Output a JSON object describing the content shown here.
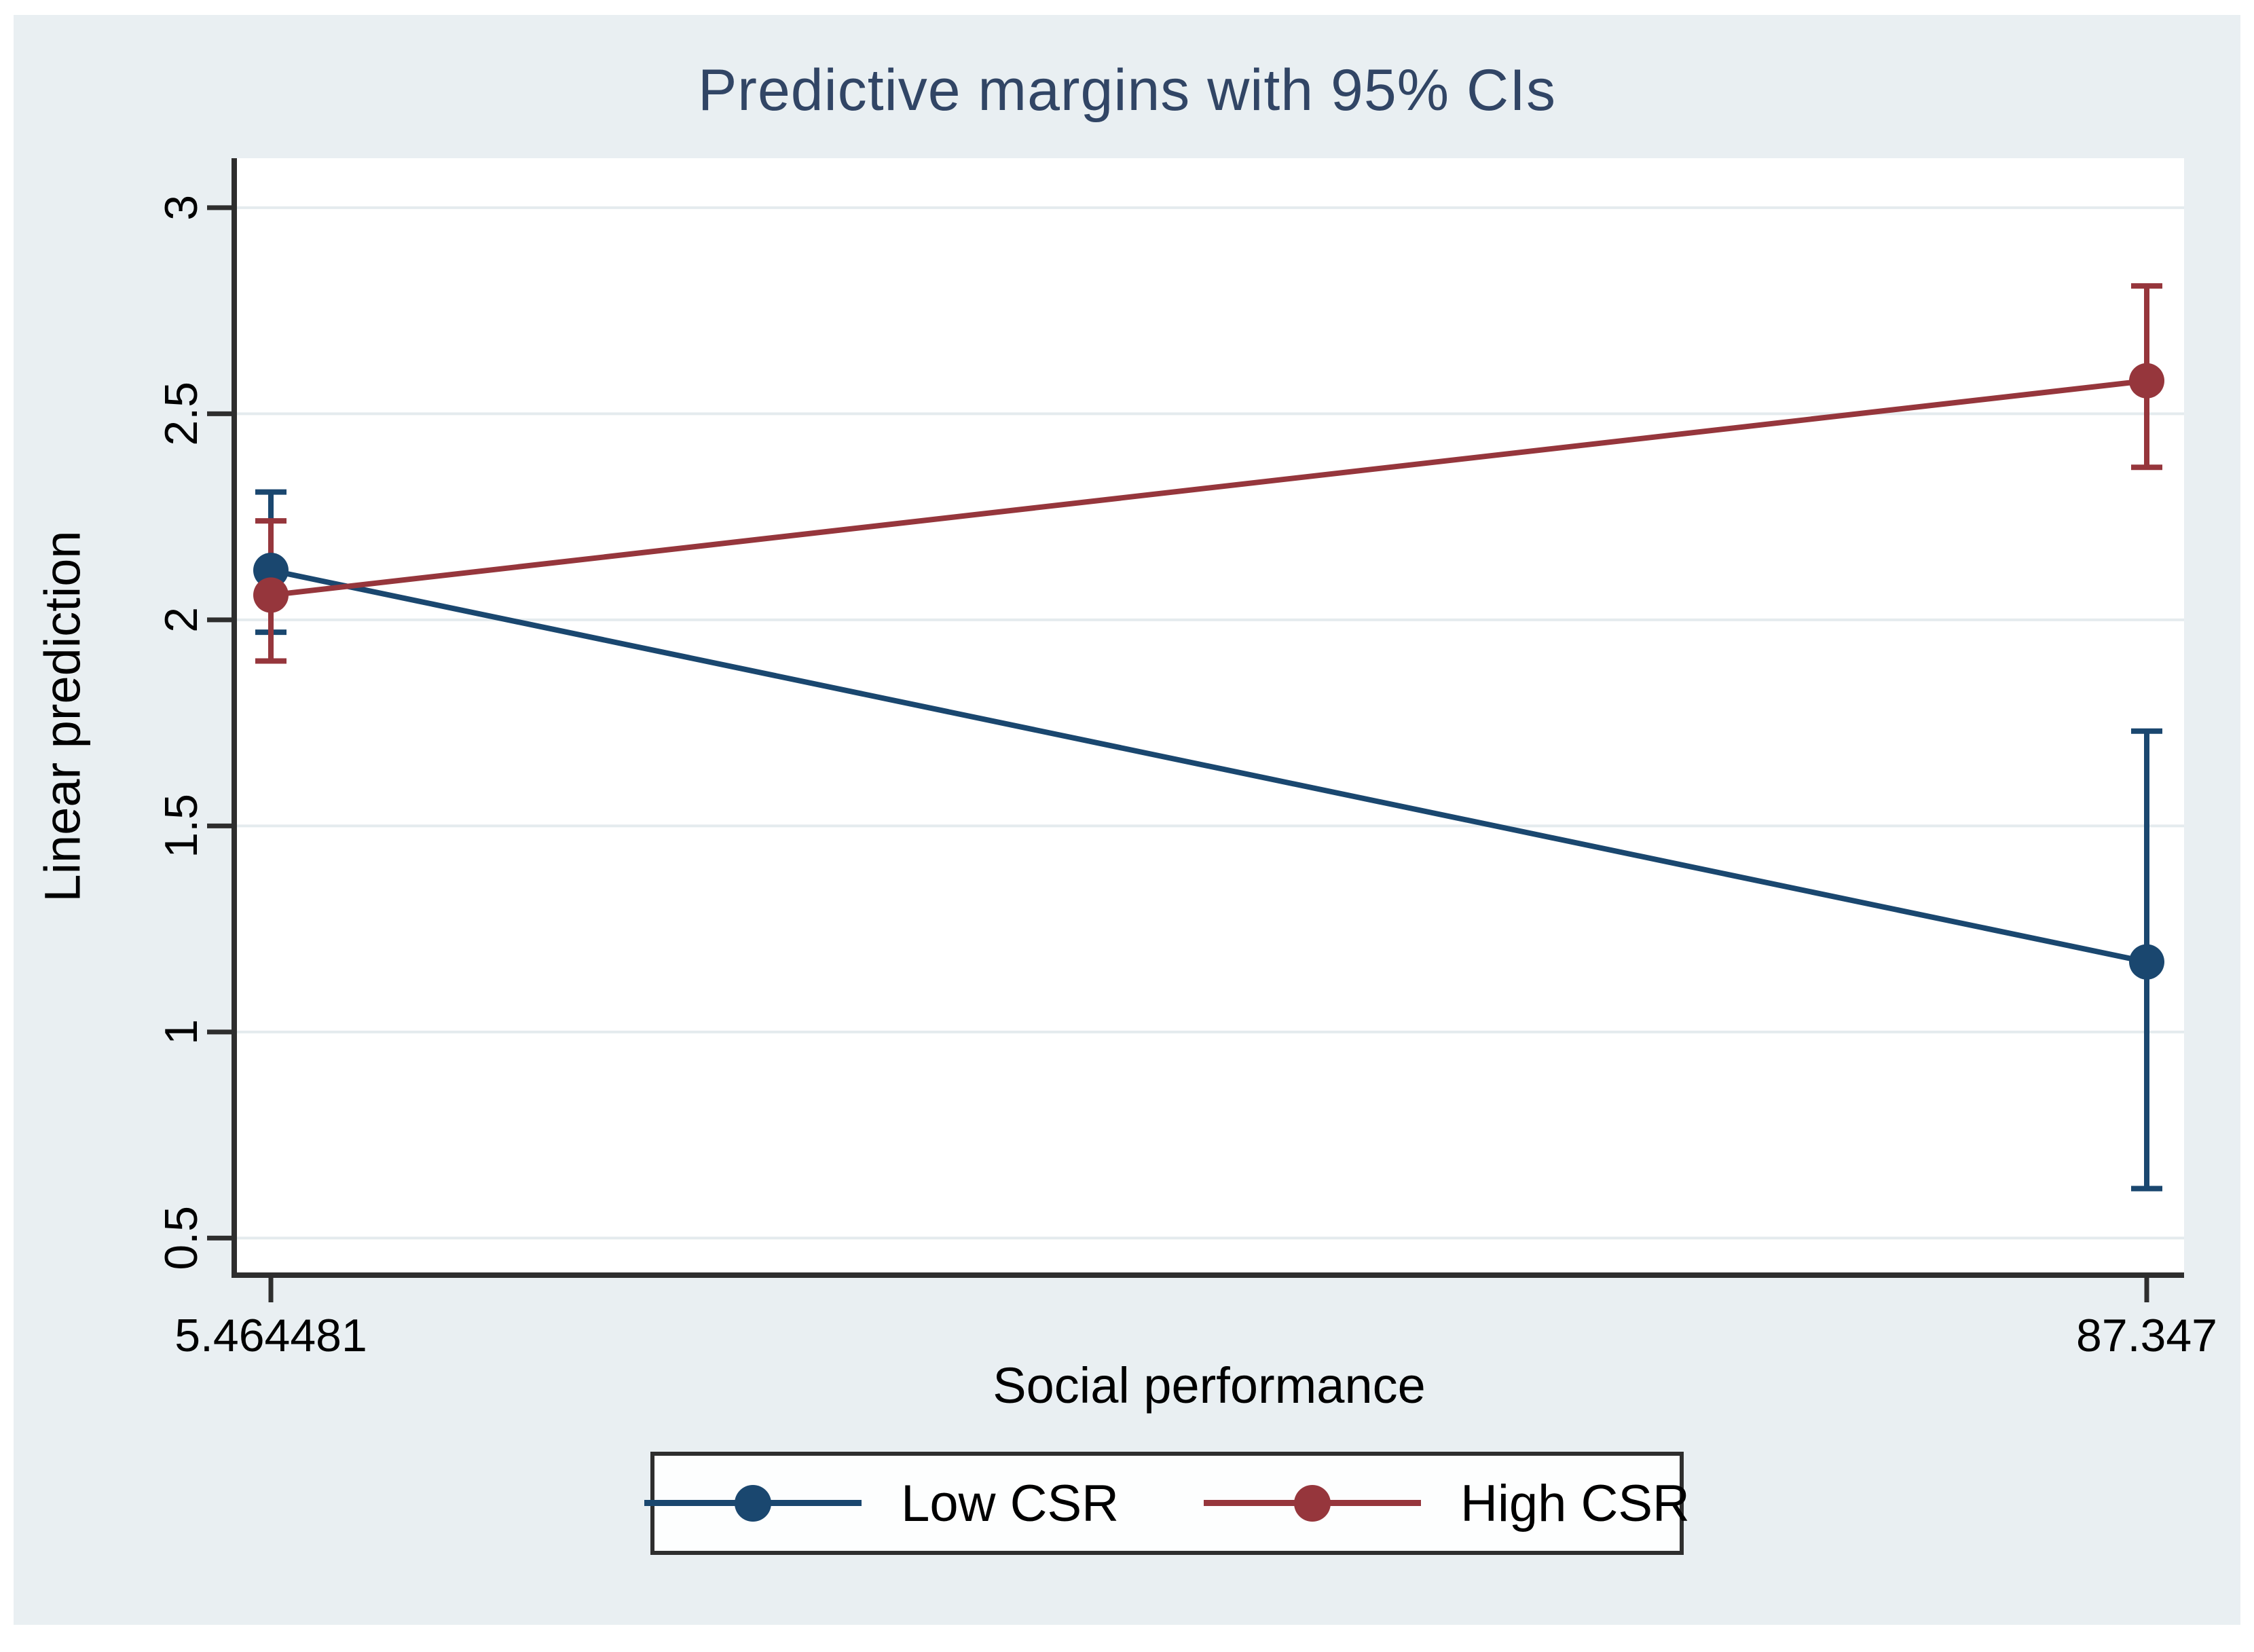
{
  "figure": {
    "canvas_background": "#e9eff2",
    "plot_background": "#ffffff",
    "outer_margin_color": "#ffffff"
  },
  "chart_data": {
    "type": "line",
    "title": "Predictive margins with 95% CIs",
    "xlabel": "Social performance",
    "ylabel": "Linear prediction",
    "x": [
      5.464481,
      87.347
    ],
    "x_tick_labels": [
      "5.464481",
      "87.347"
    ],
    "y_ticks": [
      0.5,
      1,
      1.5,
      2,
      2.5,
      3
    ],
    "y_tick_labels": [
      "0.5",
      "1",
      "1.5",
      "2",
      "2.5",
      "3"
    ],
    "ylim": [
      0.41,
      3.12
    ],
    "grid": true,
    "legend_position": "bottom-center",
    "series": [
      {
        "name": "Low CSR",
        "color": "#1a476f",
        "values": [
          2.12,
          1.17
        ],
        "ci_low": [
          1.97,
          0.62
        ],
        "ci_high": [
          2.31,
          1.73
        ]
      },
      {
        "name": "High CSR",
        "color": "#96363c",
        "values": [
          2.06,
          2.58
        ],
        "ci_low": [
          1.9,
          2.37
        ],
        "ci_high": [
          2.24,
          2.81
        ]
      }
    ],
    "colors": {
      "axis": "#2e2e2e",
      "grid": "#e4ebee",
      "title": "#314565",
      "tick_text": "#000000"
    }
  }
}
